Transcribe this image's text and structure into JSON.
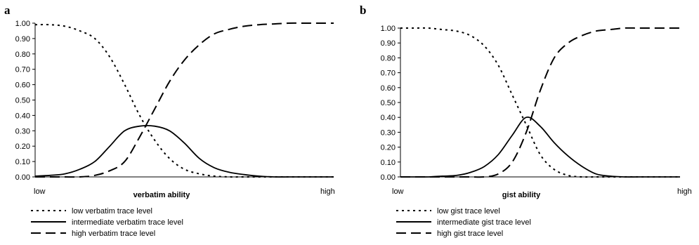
{
  "chart_data": [
    {
      "type": "line",
      "panel": "a",
      "xlabel": "verbatim ability",
      "x_min_label": "low",
      "x_max_label": "high",
      "ylabel": "",
      "ylim": [
        0,
        1
      ],
      "yticks": [
        "0.00",
        "0.10",
        "0.20",
        "0.30",
        "0.40",
        "0.50",
        "0.60",
        "0.70",
        "0.80",
        "0.90",
        "1.00"
      ],
      "grid": false,
      "legend_position": "bottom-left",
      "series": [
        {
          "name": "low verbatim trace level",
          "dash": "dotted",
          "x": [
            0,
            0.05,
            0.1,
            0.15,
            0.2,
            0.25,
            0.3,
            0.35,
            0.4,
            0.45,
            0.5,
            0.55,
            0.6,
            0.65,
            0.7,
            0.75,
            0.8,
            0.85,
            0.9,
            0.95,
            1
          ],
          "y": [
            0.99,
            0.99,
            0.98,
            0.95,
            0.9,
            0.78,
            0.6,
            0.4,
            0.24,
            0.12,
            0.05,
            0.02,
            0.005,
            0,
            0,
            0,
            0,
            0,
            0,
            0,
            0
          ]
        },
        {
          "name": "intermediate verbatim trace level",
          "dash": "solid",
          "x": [
            0,
            0.05,
            0.1,
            0.15,
            0.2,
            0.25,
            0.3,
            0.35,
            0.4,
            0.45,
            0.5,
            0.55,
            0.6,
            0.65,
            0.7,
            0.75,
            0.8,
            0.85,
            0.9,
            0.95,
            1
          ],
          "y": [
            0.005,
            0.01,
            0.02,
            0.05,
            0.1,
            0.2,
            0.3,
            0.33,
            0.33,
            0.3,
            0.22,
            0.12,
            0.06,
            0.03,
            0.015,
            0.005,
            0,
            0,
            0,
            0,
            0
          ]
        },
        {
          "name": "high verbatim trace level",
          "dash": "dashed",
          "x": [
            0,
            0.05,
            0.1,
            0.15,
            0.2,
            0.25,
            0.3,
            0.35,
            0.4,
            0.45,
            0.5,
            0.55,
            0.6,
            0.65,
            0.7,
            0.75,
            0.8,
            0.85,
            0.9,
            0.95,
            1
          ],
          "y": [
            0,
            0,
            0,
            0,
            0.01,
            0.04,
            0.1,
            0.26,
            0.44,
            0.62,
            0.76,
            0.86,
            0.93,
            0.96,
            0.98,
            0.99,
            0.995,
            1,
            1,
            1,
            1
          ]
        }
      ]
    },
    {
      "type": "line",
      "panel": "b",
      "xlabel": "gist ability",
      "x_min_label": "low",
      "x_max_label": "high",
      "ylabel": "",
      "ylim": [
        0,
        1
      ],
      "yticks": [
        "0.00",
        "0.10",
        "0.20",
        "0.30",
        "0.40",
        "0.50",
        "0.60",
        "0.70",
        "0.80",
        "0.90",
        "1.00"
      ],
      "grid": false,
      "legend_position": "bottom-left",
      "series": [
        {
          "name": "low gist trace level",
          "dash": "dotted",
          "x": [
            0,
            0.05,
            0.1,
            0.15,
            0.2,
            0.25,
            0.3,
            0.35,
            0.4,
            0.45,
            0.5,
            0.55,
            0.6,
            0.65,
            0.7,
            0.75,
            0.8,
            0.85,
            0.9,
            0.95,
            1
          ],
          "y": [
            1,
            1,
            1,
            0.99,
            0.98,
            0.95,
            0.88,
            0.75,
            0.55,
            0.35,
            0.15,
            0.05,
            0.01,
            0,
            0,
            0,
            0,
            0,
            0,
            0,
            0
          ]
        },
        {
          "name": "intermediate gist trace level",
          "dash": "solid",
          "x": [
            0,
            0.05,
            0.1,
            0.15,
            0.2,
            0.25,
            0.3,
            0.35,
            0.4,
            0.45,
            0.5,
            0.55,
            0.6,
            0.65,
            0.7,
            0.75,
            0.8,
            0.85,
            0.9,
            0.95,
            1
          ],
          "y": [
            0,
            0,
            0,
            0.005,
            0.01,
            0.03,
            0.07,
            0.15,
            0.28,
            0.4,
            0.34,
            0.23,
            0.14,
            0.07,
            0.02,
            0.005,
            0,
            0,
            0,
            0,
            0
          ]
        },
        {
          "name": "high gist trace level",
          "dash": "dashed",
          "x": [
            0,
            0.05,
            0.1,
            0.15,
            0.2,
            0.25,
            0.3,
            0.35,
            0.4,
            0.45,
            0.5,
            0.55,
            0.6,
            0.65,
            0.7,
            0.75,
            0.8,
            0.85,
            0.9,
            0.95,
            1
          ],
          "y": [
            0,
            0,
            0,
            0,
            0,
            0,
            0,
            0.02,
            0.1,
            0.3,
            0.58,
            0.8,
            0.9,
            0.95,
            0.98,
            0.99,
            1,
            1,
            1,
            1,
            1
          ]
        }
      ]
    }
  ]
}
